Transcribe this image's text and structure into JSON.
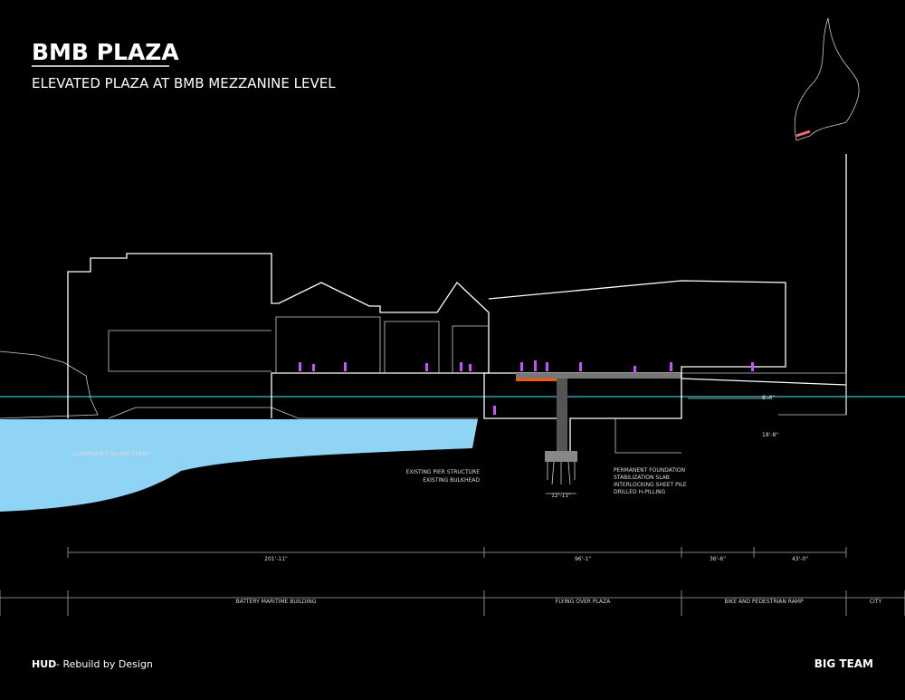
{
  "header": {
    "title": "BMB PLAZA",
    "subtitle": "ELEVATED PLAZA AT BMB MEZZANINE LEVEL"
  },
  "annotations": {
    "ferry": "GOVERNOR'S ISLAND FERRY",
    "pier": "EXISTING PIER STRUCTURE",
    "bulkhead": "EXISTING BULKHEAD",
    "foundation": [
      "PERMANENT FOUNDATION",
      "STABILIZATION SLAB",
      "INTERLOCKING SHEET PILE",
      "DRILLED H-PILLING"
    ],
    "foundation_width": "12'-11\"",
    "ramp_height": "18'-8\"",
    "clearance": "8'-8\""
  },
  "dimensions": [
    "201'-11\"",
    "96'-1\"",
    "36'-6\"",
    "43'-0\""
  ],
  "zones": [
    "BATTERY MARITIME BUILDING",
    "FLYING OVER PLAZA",
    "BIKE AND PEDESTRIAN RAMP",
    "CITY"
  ],
  "footer": {
    "client": "HUD",
    "program": " - Rebuild by Design",
    "team": "BIG TEAM"
  }
}
